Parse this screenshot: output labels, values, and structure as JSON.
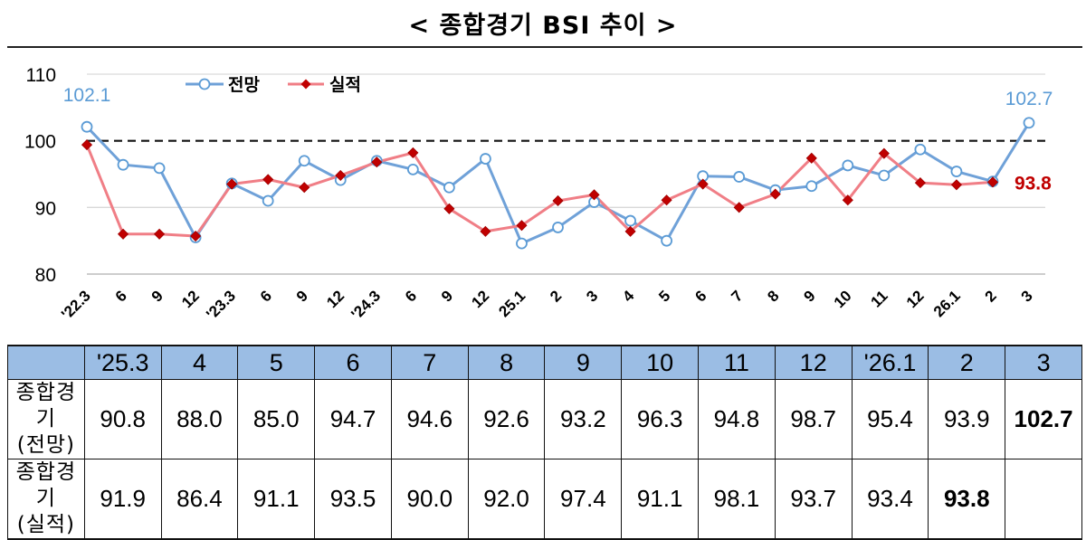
{
  "title": "< 종합경기 BSI 추이 >",
  "chart_data": {
    "type": "line",
    "categories": [
      "'22.3",
      "6",
      "9",
      "12",
      "'23.3",
      "6",
      "9",
      "12",
      "'24.3",
      "6",
      "9",
      "12",
      "25.1",
      "2",
      "3",
      "4",
      "5",
      "6",
      "7",
      "8",
      "9",
      "10",
      "11",
      "12",
      "26.1",
      "2",
      "3"
    ],
    "series": [
      {
        "name": "전망",
        "color": "#5b9bd5",
        "values": [
          102.1,
          96.4,
          95.9,
          85.5,
          93.6,
          91.0,
          97.0,
          94.1,
          97.0,
          95.7,
          93.0,
          97.3,
          84.6,
          87.0,
          90.8,
          88.0,
          85.0,
          94.7,
          94.6,
          92.6,
          93.2,
          96.3,
          94.8,
          98.7,
          95.4,
          93.9,
          102.7
        ]
      },
      {
        "name": "실적",
        "color": "#c00000",
        "values": [
          99.4,
          86.0,
          86.0,
          85.7,
          93.5,
          94.2,
          93.0,
          94.8,
          96.8,
          98.2,
          89.8,
          86.4,
          87.3,
          91.0,
          91.9,
          86.4,
          91.1,
          93.5,
          90.0,
          92.0,
          97.4,
          91.1,
          98.1,
          93.7,
          93.4,
          93.8,
          null
        ]
      }
    ],
    "ylim": [
      80,
      110
    ],
    "yticks": [
      "80",
      "90",
      "100",
      "110"
    ],
    "reference_line": 100,
    "grid": true,
    "legend_position": "top-left",
    "annotations": [
      {
        "text": "102.1",
        "series": "전망",
        "index": 0,
        "color": "#5b9bd5"
      },
      {
        "text": "102.7",
        "series": "전망",
        "index": 26,
        "color": "#5b9bd5"
      },
      {
        "text": "93.8",
        "series": "실적",
        "index": 25,
        "color": "#c00000"
      }
    ]
  },
  "table": {
    "headers": [
      "'25.3",
      "4",
      "5",
      "6",
      "7",
      "8",
      "9",
      "10",
      "11",
      "12",
      "'26.1",
      "2",
      "3"
    ],
    "rows": [
      {
        "label_line1": "종합경기",
        "label_line2": "(전망)",
        "values": [
          "90.8",
          "88.0",
          "85.0",
          "94.7",
          "94.6",
          "92.6",
          "93.2",
          "96.3",
          "94.8",
          "98.7",
          "95.4",
          "93.9",
          "102.7"
        ]
      },
      {
        "label_line1": "종합경기",
        "label_line2": "(실적)",
        "values": [
          "91.9",
          "86.4",
          "91.1",
          "93.5",
          "90.0",
          "92.0",
          "97.4",
          "91.1",
          "98.1",
          "93.7",
          "93.4",
          "93.8",
          ""
        ]
      }
    ]
  }
}
